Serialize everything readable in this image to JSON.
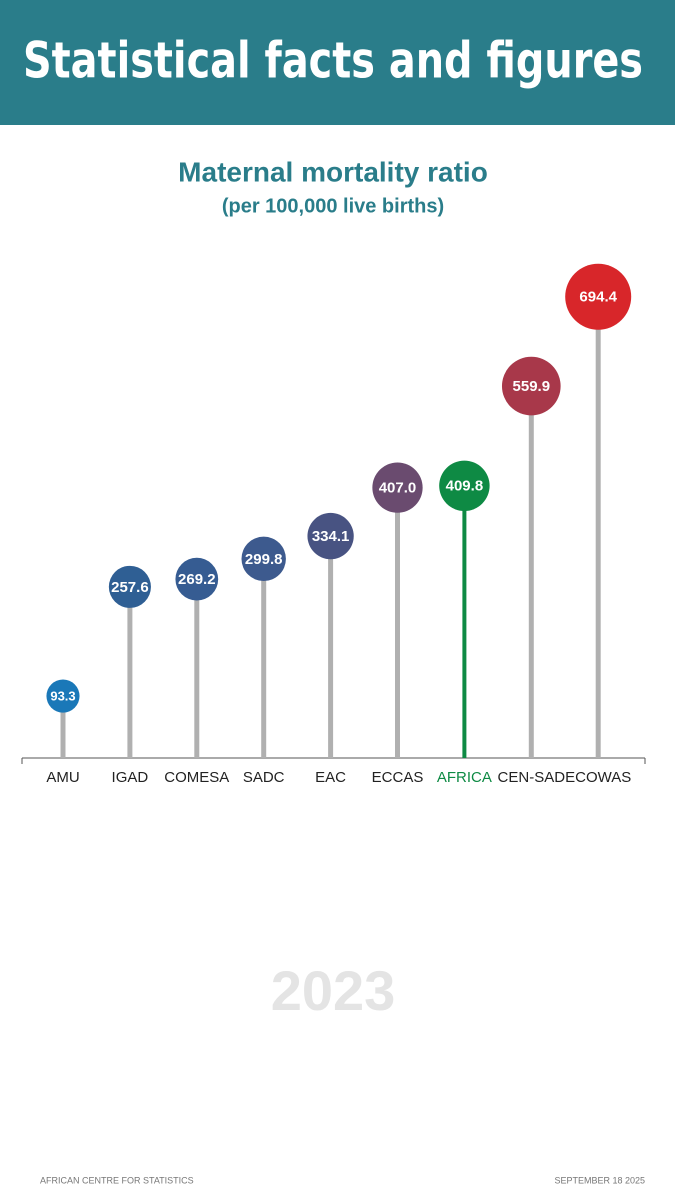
{
  "header": {
    "title": "Statistical facts and figures"
  },
  "chart_data": {
    "type": "lollipop",
    "title": "Maternal mortality ratio",
    "subtitle": "(per 100,000 live births)",
    "categories": [
      "AMU",
      "IGAD",
      "COMESA",
      "SADC",
      "EAC",
      "ECCAS",
      "AFRICA",
      "CEN-SAD",
      "ECOWAS"
    ],
    "values": [
      93.3,
      257.6,
      269.2,
      299.8,
      334.1,
      407.0,
      409.8,
      559.9,
      694.4
    ],
    "value_labels": [
      "93.3",
      "257.6",
      "269.2",
      "299.8",
      "334.1",
      "407.0",
      "409.8",
      "559.9",
      "694.4"
    ],
    "colors": [
      "#1a78b8",
      "#2f5f94",
      "#365c92",
      "#3d5a8e",
      "#485382",
      "#6a4b6f",
      "#0e8a44",
      "#a8384a",
      "#d8262a"
    ],
    "stem_color": "#b0b0b0",
    "highlight": "AFRICA",
    "ylim": [
      0,
      700
    ],
    "year": "2023"
  },
  "footer": {
    "left": "AFRICAN CENTRE FOR STATISTICS",
    "right": "SEPTEMBER  18 2025"
  }
}
